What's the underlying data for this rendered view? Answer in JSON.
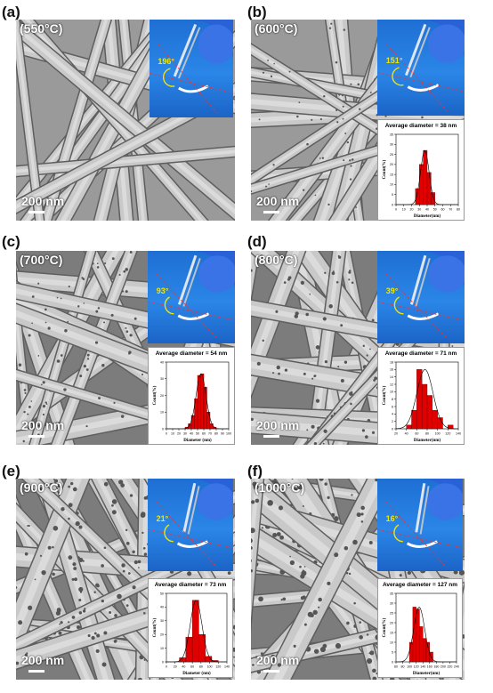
{
  "panels": [
    {
      "letter": "(a)",
      "temp": "(550°C)",
      "scale": "200 nm",
      "angle": "196°",
      "has_hist": false
    },
    {
      "letter": "(b)",
      "temp": "(600°C)",
      "scale": "200 nm",
      "angle": "151°",
      "has_hist": true
    },
    {
      "letter": "(c)",
      "temp": "(700°C)",
      "scale": "200 nm",
      "angle": "93°",
      "has_hist": true
    },
    {
      "letter": "(d)",
      "temp": "(800°C)",
      "scale": "200 nm",
      "angle": "39°",
      "has_hist": true
    },
    {
      "letter": "(e)",
      "temp": "(900°C)",
      "scale": "200 nm",
      "angle": "21°",
      "has_hist": true
    },
    {
      "letter": "(f)",
      "temp": "(1000°C)",
      "scale": "200 nm",
      "angle": "16°",
      "has_hist": true
    }
  ],
  "chart_data": [
    {
      "panel": "(b)",
      "type": "bar",
      "title": "Average diameter = 38 nm",
      "xlabel": "Diameter(nm)",
      "ylabel": "Count(%)",
      "xlim": [
        0,
        80
      ],
      "ylim": [
        0,
        35
      ],
      "x_ticks": [
        0,
        10,
        20,
        30,
        40,
        50,
        60,
        70,
        80
      ],
      "y_ticks": [
        0,
        5,
        10,
        15,
        20,
        25,
        30,
        35
      ],
      "bins": [
        [
          25,
          30
        ],
        [
          30,
          35
        ],
        [
          35,
          40
        ],
        [
          40,
          45
        ],
        [
          45,
          50
        ]
      ],
      "values": [
        8,
        20,
        27,
        16,
        6
      ]
    },
    {
      "panel": "(c)",
      "type": "bar",
      "title": "Average diameter = 54 nm",
      "xlabel": "Diameter (nm)",
      "ylabel": "Count(%)",
      "xlim": [
        0,
        100
      ],
      "ylim": [
        0,
        40
      ],
      "x_ticks": [
        0,
        10,
        20,
        30,
        40,
        50,
        60,
        70,
        80,
        90,
        100
      ],
      "y_ticks": [
        0,
        10,
        20,
        30,
        40
      ],
      "bins": [
        [
          30,
          35
        ],
        [
          35,
          40
        ],
        [
          40,
          45
        ],
        [
          45,
          50
        ],
        [
          50,
          55
        ],
        [
          55,
          60
        ],
        [
          60,
          65
        ],
        [
          65,
          70
        ],
        [
          70,
          75
        ],
        [
          75,
          80
        ]
      ],
      "values": [
        1,
        3,
        8,
        18,
        32,
        33,
        25,
        10,
        3,
        1
      ]
    },
    {
      "panel": "(d)",
      "type": "bar",
      "title": "Average diameter = 71 nm",
      "xlabel": "Diameter(nm)",
      "ylabel": "Count(%)",
      "xlim": [
        20,
        140
      ],
      "ylim": [
        0,
        18
      ],
      "x_ticks": [
        20,
        40,
        60,
        80,
        100,
        120,
        140
      ],
      "y_ticks": [
        0,
        2,
        4,
        6,
        8,
        10,
        12,
        14,
        16,
        18
      ],
      "bins": [
        [
          40,
          50
        ],
        [
          50,
          60
        ],
        [
          60,
          70
        ],
        [
          70,
          80
        ],
        [
          80,
          90
        ],
        [
          90,
          100
        ],
        [
          100,
          110
        ],
        [
          120,
          130
        ]
      ],
      "values": [
        1,
        5,
        16,
        12,
        9,
        5,
        3,
        1
      ]
    },
    {
      "panel": "(e)",
      "type": "bar",
      "title": "Average diameter = 73 nm",
      "xlabel": "Diameter (nm)",
      "ylabel": "Count(%)",
      "xlim": [
        0,
        140
      ],
      "ylim": [
        0,
        50
      ],
      "x_ticks": [
        0,
        20,
        40,
        60,
        80,
        100,
        120,
        140
      ],
      "y_ticks": [
        0,
        10,
        20,
        30,
        40,
        50
      ],
      "bins": [
        [
          30,
          45
        ],
        [
          45,
          60
        ],
        [
          60,
          75
        ],
        [
          75,
          90
        ],
        [
          90,
          105
        ],
        [
          105,
          120
        ]
      ],
      "values": [
        3,
        18,
        45,
        20,
        4,
        1
      ]
    },
    {
      "panel": "(f)",
      "type": "bar",
      "title": "Average diameter = 127 nm",
      "xlabel": "Diameter(nm)",
      "ylabel": "Count(%)",
      "xlim": [
        60,
        240
      ],
      "ylim": [
        0,
        35
      ],
      "x_ticks": [
        60,
        80,
        100,
        120,
        140,
        160,
        180,
        200,
        220,
        240
      ],
      "y_ticks": [
        0,
        5,
        10,
        15,
        20,
        25,
        30,
        35
      ],
      "bins": [
        [
          100,
          110
        ],
        [
          110,
          120
        ],
        [
          120,
          130
        ],
        [
          130,
          140
        ],
        [
          140,
          150
        ],
        [
          150,
          160
        ],
        [
          160,
          170
        ]
      ],
      "values": [
        10,
        28,
        27,
        18,
        12,
        10,
        5
      ]
    }
  ]
}
